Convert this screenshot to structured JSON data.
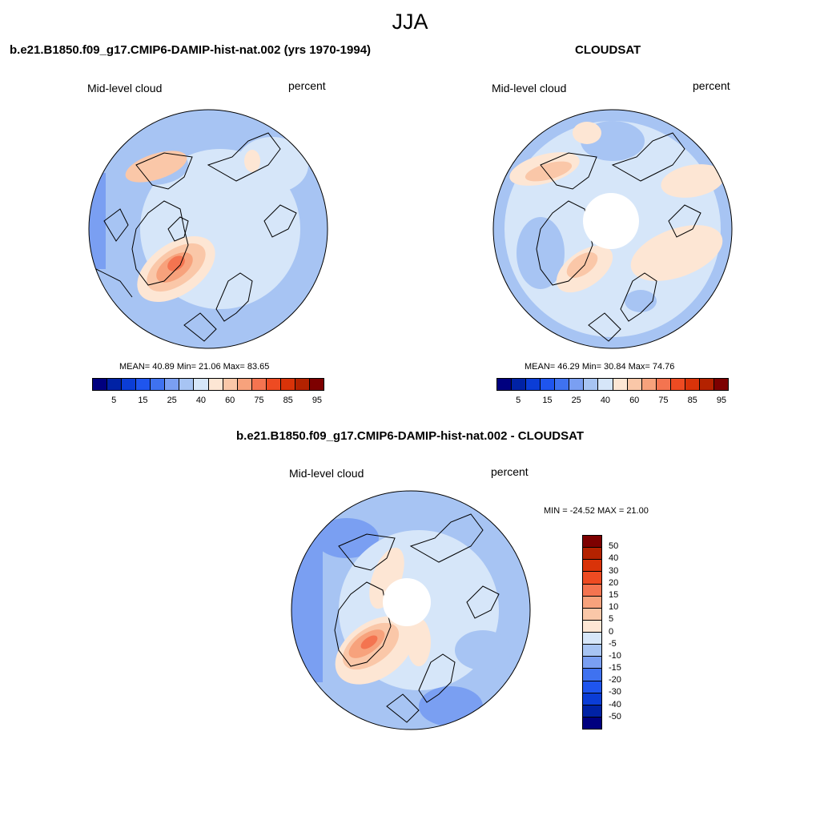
{
  "title": "JJA",
  "panels": [
    {
      "title": "b.e21.B1850.f09_g17.CMIP6-DAMIP-hist-nat.002 (yrs 1970-1994)",
      "variable": "Mid-level cloud",
      "units": "percent",
      "stats": "MEAN=  40.89  Min=  21.06  Max=  83.65"
    },
    {
      "title": "CLOUDSAT",
      "variable": "Mid-level cloud",
      "units": "percent",
      "stats": "MEAN=  46.29  Min=  30.84  Max=  74.76"
    },
    {
      "title": "b.e21.B1850.f09_g17.CMIP6-DAMIP-hist-nat.002 - CLOUDSAT",
      "variable": "Mid-level cloud",
      "units": "percent",
      "stats": "MIN = -24.52 MAX =  21.00"
    }
  ],
  "colorbar_abs": {
    "colors": [
      "#00007f",
      "#0022a5",
      "#0b3dd6",
      "#1f55ee",
      "#3f72f0",
      "#7a9ff2",
      "#a7c4f3",
      "#d6e6f9",
      "#fde6d4",
      "#fac7a8",
      "#f7a27c",
      "#f47450",
      "#ee4b22",
      "#d93309",
      "#b42200",
      "#7d0000"
    ],
    "labels": [
      "5",
      "15",
      "25",
      "40",
      "60",
      "75",
      "85",
      "95"
    ]
  },
  "colorbar_diff": {
    "colors": [
      "#7d0000",
      "#b42200",
      "#d93309",
      "#ee4b22",
      "#f47450",
      "#f7a27c",
      "#fac7a8",
      "#fde6d4",
      "#d6e6f9",
      "#a7c4f3",
      "#7a9ff2",
      "#3f72f0",
      "#1f55ee",
      "#0b3dd6",
      "#0022a5",
      "#00007f"
    ],
    "labels": [
      "50",
      "40",
      "30",
      "20",
      "15",
      "10",
      "5",
      "0",
      "-5",
      "-10",
      "-15",
      "-20",
      "-30",
      "-40",
      "-50"
    ]
  }
}
